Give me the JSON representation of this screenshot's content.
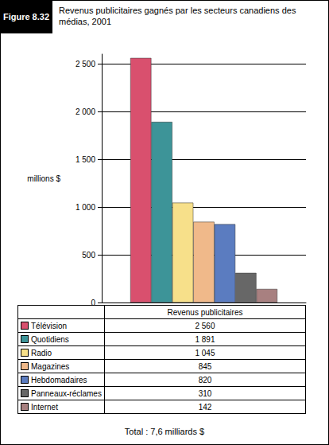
{
  "chart_data": {
    "type": "bar",
    "figure": "Figure 8.32",
    "title": "Revenus publicitaires gagnés par les secteurs canadiens des médias, 2001",
    "y_label": "millions $",
    "categories": [
      "Revenus publicitaires"
    ],
    "series": [
      {
        "name": "Télévision",
        "color": "#d9506e",
        "values": [
          2560
        ],
        "value_labels": [
          "2 560"
        ]
      },
      {
        "name": "Quotidiens",
        "color": "#3d9498",
        "values": [
          1891
        ],
        "value_labels": [
          "1 891"
        ]
      },
      {
        "name": "Radio",
        "color": "#f7e08a",
        "values": [
          1045
        ],
        "value_labels": [
          "1 045"
        ]
      },
      {
        "name": "Magazines",
        "color": "#f0b98a",
        "values": [
          845
        ],
        "value_labels": [
          "845"
        ]
      },
      {
        "name": "Hebdomadaires",
        "color": "#5b7cc0",
        "values": [
          820
        ],
        "value_labels": [
          "820"
        ]
      },
      {
        "name": "Panneaux-réclames",
        "color": "#676767",
        "values": [
          310
        ],
        "value_labels": [
          "310"
        ]
      },
      {
        "name": "Internet",
        "color": "#a88080",
        "values": [
          142
        ],
        "value_labels": [
          "142"
        ]
      }
    ],
    "ylim": [
      0,
      2600
    ],
    "yticks": [
      0,
      500,
      {
        "value": 1000,
        "label": "1 000"
      },
      {
        "value": 1500,
        "label": "1 500"
      },
      {
        "value": 2000,
        "label": "2 000"
      },
      {
        "value": 2500,
        "label": "2 500"
      }
    ],
    "grid": true,
    "annotations": [
      "Total : 7,6 milliards $"
    ]
  }
}
